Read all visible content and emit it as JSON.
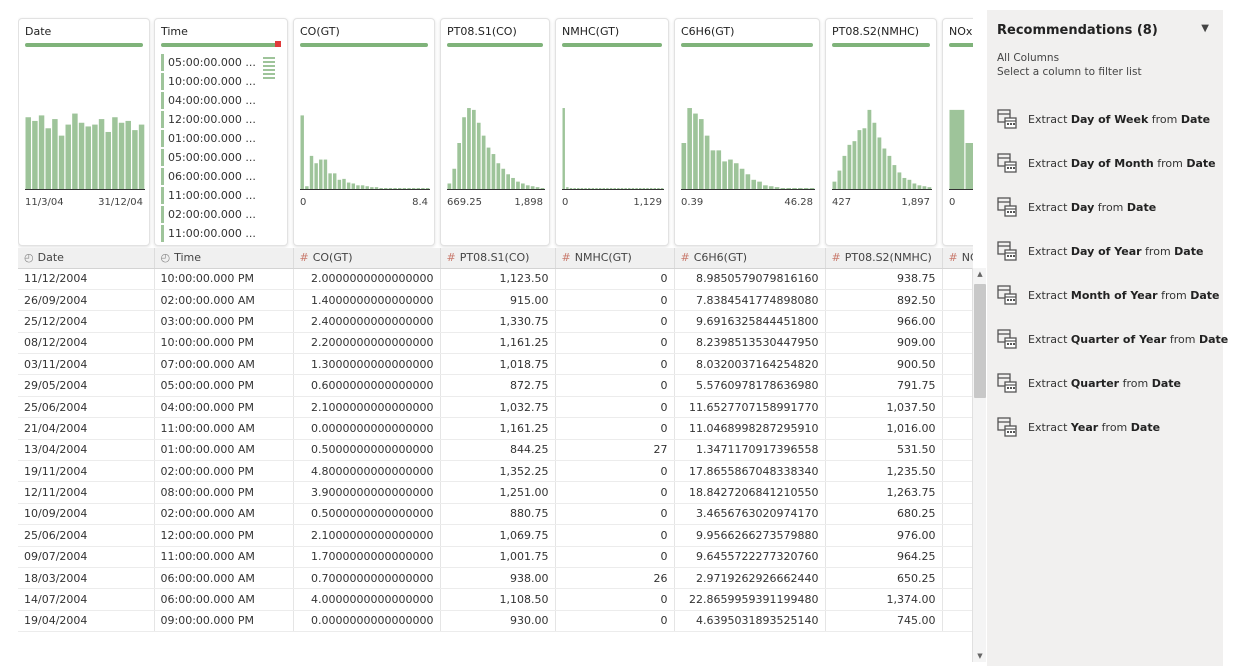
{
  "profile_cards": [
    {
      "title": "Date",
      "min": "11/3/04",
      "max": "31/12/04",
      "bars": [
        0.78,
        0.74,
        0.8,
        0.66,
        0.76,
        0.58,
        0.7,
        0.82,
        0.72,
        0.68,
        0.7,
        0.76,
        0.62,
        0.78,
        0.72,
        0.74,
        0.64,
        0.7
      ]
    },
    {
      "title": "Time",
      "items": [
        "05:00:00.000 ...",
        "10:00:00.000 ...",
        "04:00:00.000 ...",
        "12:00:00.000 ...",
        "01:00:00.000 ...",
        "05:00:00.000 ...",
        "06:00:00.000 ...",
        "11:00:00.000 ...",
        "02:00:00.000 ...",
        "11:00:00.000 ..."
      ]
    },
    {
      "title": "CO(GT)",
      "min": "0",
      "max": "8.4",
      "bars": [
        0.8,
        0.03,
        0.36,
        0.28,
        0.32,
        0.32,
        0.17,
        0.17,
        0.1,
        0.11,
        0.07,
        0.06,
        0.04,
        0.04,
        0.03,
        0.02,
        0.02,
        0.01,
        0.01,
        0.01,
        0.01,
        0.01,
        0.005,
        0.005,
        0.005,
        0.005,
        0.005,
        0.005
      ]
    },
    {
      "title": "PT08.S1(CO)",
      "min": "669.25",
      "max": "1,898",
      "bars": [
        0.06,
        0.22,
        0.5,
        0.78,
        0.88,
        0.86,
        0.72,
        0.58,
        0.45,
        0.38,
        0.28,
        0.22,
        0.16,
        0.12,
        0.08,
        0.06,
        0.04,
        0.03,
        0.02,
        0.01
      ]
    },
    {
      "title": "NMHC(GT)",
      "min": "0",
      "max": "1,129",
      "bars": [
        0.88,
        0.02,
        0.01,
        0.005,
        0.005,
        0.005,
        0.005,
        0.005,
        0.005,
        0.005,
        0.005,
        0.005,
        0.005,
        0.005,
        0.005,
        0.005,
        0.005,
        0.005,
        0.005,
        0.005,
        0.005,
        0.005,
        0.005,
        0.005,
        0.005,
        0.005,
        0.005,
        0.005
      ]
    },
    {
      "title": "C6H6(GT)",
      "min": "0.39",
      "max": "46.28",
      "bars": [
        0.5,
        0.88,
        0.82,
        0.76,
        0.58,
        0.42,
        0.42,
        0.3,
        0.32,
        0.28,
        0.22,
        0.16,
        0.1,
        0.08,
        0.04,
        0.03,
        0.02,
        0.01,
        0.01,
        0.005,
        0.005,
        0.005,
        0.005
      ]
    },
    {
      "title": "PT08.S2(NMHC)",
      "min": "427",
      "max": "1,897",
      "bars": [
        0.08,
        0.2,
        0.36,
        0.48,
        0.52,
        0.64,
        0.66,
        0.86,
        0.72,
        0.56,
        0.44,
        0.36,
        0.26,
        0.18,
        0.12,
        0.1,
        0.06,
        0.04,
        0.03,
        0.02
      ]
    },
    {
      "title": "NOx(",
      "min": "0",
      "bars": [
        0.86,
        0.5,
        0.3
      ]
    }
  ],
  "columns": [
    {
      "label": "Date",
      "icon": "clock-icon"
    },
    {
      "label": "Time",
      "icon": "clock-icon"
    },
    {
      "label": "CO(GT)",
      "icon": "hash-icon"
    },
    {
      "label": "PT08.S1(CO)",
      "icon": "hash-icon"
    },
    {
      "label": "NMHC(GT)",
      "icon": "hash-icon"
    },
    {
      "label": "C6H6(GT)",
      "icon": "hash-icon"
    },
    {
      "label": "PT08.S2(NMHC)",
      "icon": "hash-icon"
    },
    {
      "label": "NC",
      "icon": "hash-icon"
    }
  ],
  "rows": [
    [
      "11/12/2004",
      "10:00:00.000 PM",
      "2.0000000000000000",
      "1,123.50",
      "0",
      "8.9850579079816160",
      "938.75"
    ],
    [
      "26/09/2004",
      "02:00:00.000 AM",
      "1.4000000000000000",
      "915.00",
      "0",
      "7.8384541774898080",
      "892.50"
    ],
    [
      "25/12/2004",
      "03:00:00.000 PM",
      "2.4000000000000000",
      "1,330.75",
      "0",
      "9.6916325844451800",
      "966.00"
    ],
    [
      "08/12/2004",
      "10:00:00.000 PM",
      "2.2000000000000000",
      "1,161.25",
      "0",
      "8.2398513530447950",
      "909.00"
    ],
    [
      "03/11/2004",
      "07:00:00.000 AM",
      "1.3000000000000000",
      "1,018.75",
      "0",
      "8.0320037164254820",
      "900.50"
    ],
    [
      "29/05/2004",
      "05:00:00.000 PM",
      "0.6000000000000000",
      "872.75",
      "0",
      "5.5760978178636980",
      "791.75"
    ],
    [
      "25/06/2004",
      "04:00:00.000 PM",
      "2.1000000000000000",
      "1,032.75",
      "0",
      "11.6527707158991770",
      "1,037.50"
    ],
    [
      "21/04/2004",
      "11:00:00.000 AM",
      "0.0000000000000000",
      "1,161.25",
      "0",
      "11.0468998287295910",
      "1,016.00"
    ],
    [
      "13/04/2004",
      "01:00:00.000 AM",
      "0.5000000000000000",
      "844.25",
      "27",
      "1.3471170917396558",
      "531.50"
    ],
    [
      "19/11/2004",
      "02:00:00.000 PM",
      "4.8000000000000000",
      "1,352.25",
      "0",
      "17.8655867048338340",
      "1,235.50"
    ],
    [
      "12/11/2004",
      "08:00:00.000 PM",
      "3.9000000000000000",
      "1,251.00",
      "0",
      "18.8427206841210550",
      "1,263.75"
    ],
    [
      "10/09/2004",
      "02:00:00.000 AM",
      "0.5000000000000000",
      "880.75",
      "0",
      "3.4656763020974170",
      "680.25"
    ],
    [
      "25/06/2004",
      "12:00:00.000 PM",
      "2.1000000000000000",
      "1,069.75",
      "0",
      "9.9566266273579880",
      "976.00"
    ],
    [
      "09/07/2004",
      "11:00:00.000 AM",
      "1.7000000000000000",
      "1,001.75",
      "0",
      "9.6455722277320760",
      "964.25"
    ],
    [
      "18/03/2004",
      "06:00:00.000 AM",
      "0.7000000000000000",
      "938.00",
      "26",
      "2.9719262926662440",
      "650.25"
    ],
    [
      "14/07/2004",
      "06:00:00.000 AM",
      "4.0000000000000000",
      "1,108.50",
      "0",
      "22.8659959391199480",
      "1,374.00"
    ],
    [
      "19/04/2004",
      "09:00:00.000 PM",
      "0.0000000000000000",
      "930.00",
      "0",
      "4.6395031893525140",
      "745.00"
    ]
  ],
  "recommendations": {
    "title": "Recommendations (8)",
    "scope": "All Columns",
    "hint": "Select a column to filter list",
    "items": [
      {
        "pre": "Extract ",
        "bold": "Day of Week",
        "mid": " from ",
        "col": "Date"
      },
      {
        "pre": "Extract ",
        "bold": "Day of Month",
        "mid": " from ",
        "col": "Date"
      },
      {
        "pre": "Extract ",
        "bold": "Day",
        "mid": " from ",
        "col": "Date"
      },
      {
        "pre": "Extract ",
        "bold": "Day of Year",
        "mid": " from ",
        "col": "Date"
      },
      {
        "pre": "Extract ",
        "bold": "Month of Year",
        "mid": " from ",
        "col": "Date"
      },
      {
        "pre": "Extract ",
        "bold": "Quarter of Year",
        "mid": " from ",
        "col": "Date"
      },
      {
        "pre": "Extract ",
        "bold": "Quarter",
        "mid": " from ",
        "col": "Date"
      },
      {
        "pre": "Extract ",
        "bold": "Year",
        "mid": " from ",
        "col": "Date"
      }
    ]
  },
  "colors": {
    "accent": "#7fb37a",
    "bar": "#9ec49a",
    "panel_bg": "#f1f0ef"
  }
}
